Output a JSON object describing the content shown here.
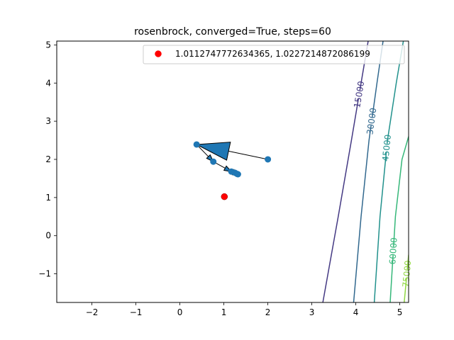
{
  "chart_data": {
    "type": "scatter",
    "title": "rosenbrock, converged=True, steps=60",
    "xlabel": "",
    "ylabel": "",
    "xlim": [
      -2.8,
      5.2
    ],
    "ylim": [
      -1.75,
      5.1
    ],
    "xticks": [
      -2,
      -1,
      0,
      1,
      2,
      3,
      4,
      5
    ],
    "yticks": [
      -1,
      0,
      1,
      2,
      3,
      4,
      5
    ],
    "grid": false,
    "legend": {
      "placement": "top-right",
      "entries": [
        {
          "label": "1.0112747772634365, 1.0227214872086199",
          "color": "#ff0000"
        }
      ]
    },
    "path_points": [
      {
        "x": 2.0,
        "y": 2.0
      },
      {
        "x": 0.38,
        "y": 2.39
      },
      {
        "x": 0.76,
        "y": 1.94
      },
      {
        "x": 1.17,
        "y": 1.68
      },
      {
        "x": 1.25,
        "y": 1.65
      },
      {
        "x": 1.3,
        "y": 1.62
      },
      {
        "x": 1.32,
        "y": 1.61
      }
    ],
    "path_color": "#1f77b4",
    "final_point": {
      "x": 1.0112747772634365,
      "y": 1.0227214872086199,
      "color": "#ff0000"
    },
    "contours": [
      {
        "level": 15000,
        "label": "15000",
        "color": "#443983",
        "points": [
          [
            3.25,
            -1.75
          ],
          [
            3.6,
            0.5
          ],
          [
            3.9,
            2.5
          ],
          [
            4.12,
            4.0
          ],
          [
            4.28,
            5.1
          ]
        ]
      },
      {
        "level": 30000,
        "label": "30000",
        "color": "#31688e",
        "points": [
          [
            3.95,
            -1.75
          ],
          [
            4.12,
            0.5
          ],
          [
            4.3,
            2.5
          ],
          [
            4.48,
            4.0
          ],
          [
            4.62,
            5.1
          ]
        ]
      },
      {
        "level": 45000,
        "label": "45000",
        "color": "#21918c",
        "points": [
          [
            4.42,
            -1.75
          ],
          [
            4.55,
            0.5
          ],
          [
            4.72,
            2.5
          ],
          [
            4.92,
            4.0
          ],
          [
            5.08,
            5.1
          ]
        ]
      },
      {
        "level": 60000,
        "label": "60000",
        "color": "#35b779",
        "points": [
          [
            4.78,
            -1.75
          ],
          [
            4.9,
            0.5
          ],
          [
            5.05,
            2.0
          ],
          [
            5.2,
            2.6
          ]
        ]
      },
      {
        "level": 75000,
        "label": "75000",
        "color": "#90d743",
        "points": [
          [
            5.1,
            -1.75
          ],
          [
            5.17,
            -0.9
          ],
          [
            5.2,
            -0.5
          ]
        ]
      }
    ]
  }
}
